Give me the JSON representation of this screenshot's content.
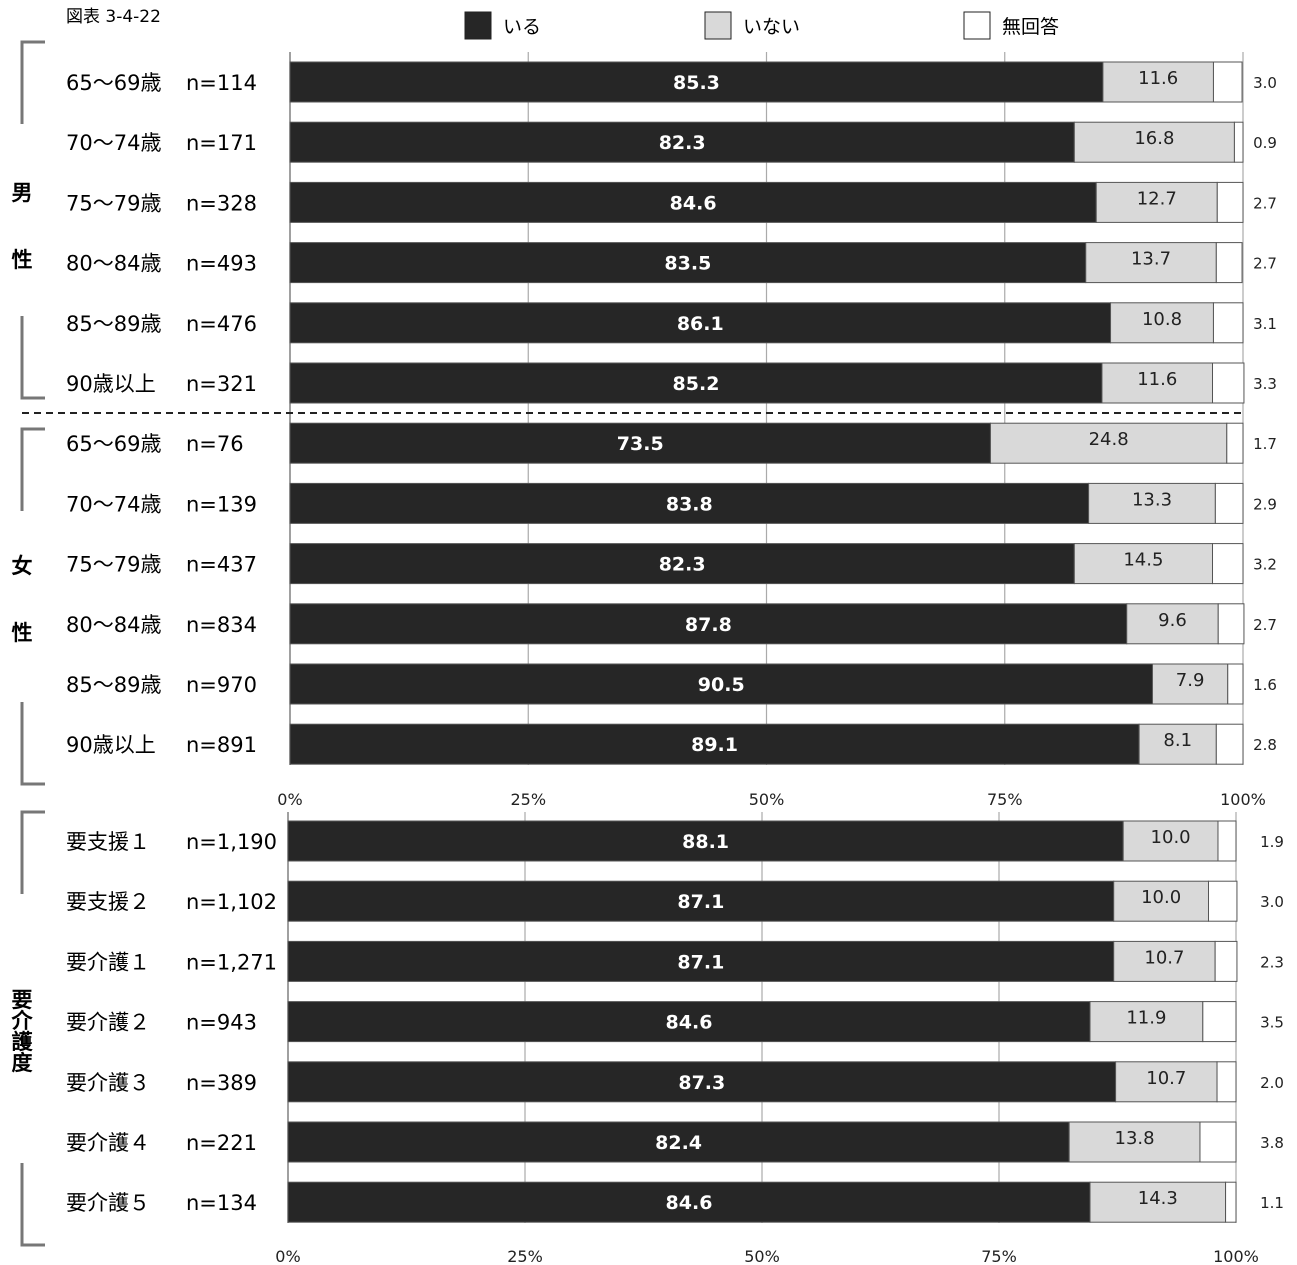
{
  "figure_label": "図表 3-4-22",
  "chart_data": {
    "type": "bar",
    "orientation": "horizontal",
    "stacked": true,
    "percent_axis": true,
    "xlim": [
      0,
      100
    ],
    "tick_labels": [
      "0%",
      "25%",
      "50%",
      "75%",
      "100%"
    ],
    "grid": true,
    "legend_position": "top",
    "series": [
      {
        "name": "いる",
        "color": "#262626"
      },
      {
        "name": "いない",
        "color": "#d9d9d9"
      },
      {
        "name": "無回答",
        "color": "#ffffff"
      }
    ],
    "panels": [
      {
        "groups": [
          {
            "label": "男性",
            "rows": [
              {
                "category": "65～69歳",
                "n": "n=114",
                "values": [
                  85.3,
                  11.6,
                  3.0
                ],
                "labels": [
                  "85.3",
                  "11.6",
                  "3.0"
                ]
              },
              {
                "category": "70～74歳",
                "n": "n=171",
                "values": [
                  82.3,
                  16.8,
                  0.9
                ],
                "labels": [
                  "82.3",
                  "16.8",
                  "0.9"
                ]
              },
              {
                "category": "75～79歳",
                "n": "n=328",
                "values": [
                  84.6,
                  12.7,
                  2.7
                ],
                "labels": [
                  "84.6",
                  "12.7",
                  "2.7"
                ]
              },
              {
                "category": "80～84歳",
                "n": "n=493",
                "values": [
                  83.5,
                  13.7,
                  2.7
                ],
                "labels": [
                  "83.5",
                  "13.7",
                  "2.7"
                ]
              },
              {
                "category": "85～89歳",
                "n": "n=476",
                "values": [
                  86.1,
                  10.8,
                  3.1
                ],
                "labels": [
                  "86.1",
                  "10.8",
                  "3.1"
                ]
              },
              {
                "category": "90歳以上",
                "n": "n=321",
                "values": [
                  85.2,
                  11.6,
                  3.3
                ],
                "labels": [
                  "85.2",
                  "11.6",
                  "3.3"
                ]
              }
            ]
          },
          {
            "label": "女性",
            "rows": [
              {
                "category": "65～69歳",
                "n": "n=76",
                "values": [
                  73.5,
                  24.8,
                  1.7
                ],
                "labels": [
                  "73.5",
                  "24.8",
                  "1.7"
                ]
              },
              {
                "category": "70～74歳",
                "n": "n=139",
                "values": [
                  83.8,
                  13.3,
                  2.9
                ],
                "labels": [
                  "83.8",
                  "13.3",
                  "2.9"
                ]
              },
              {
                "category": "75～79歳",
                "n": "n=437",
                "values": [
                  82.3,
                  14.5,
                  3.2
                ],
                "labels": [
                  "82.3",
                  "14.5",
                  "3.2"
                ]
              },
              {
                "category": "80～84歳",
                "n": "n=834",
                "values": [
                  87.8,
                  9.6,
                  2.7
                ],
                "labels": [
                  "87.8",
                  "9.6",
                  "2.7"
                ]
              },
              {
                "category": "85～89歳",
                "n": "n=970",
                "values": [
                  90.5,
                  7.9,
                  1.6
                ],
                "labels": [
                  "90.5",
                  "7.9",
                  "1.6"
                ]
              },
              {
                "category": "90歳以上",
                "n": "n=891",
                "values": [
                  89.1,
                  8.1,
                  2.8
                ],
                "labels": [
                  "89.1",
                  "8.1",
                  "2.8"
                ]
              }
            ]
          }
        ]
      },
      {
        "groups": [
          {
            "label": "要介護度",
            "rows": [
              {
                "category": "要支援１",
                "n": "n=1,190",
                "values": [
                  88.1,
                  10.0,
                  1.9
                ],
                "labels": [
                  "88.1",
                  "10.0",
                  "1.9"
                ]
              },
              {
                "category": "要支援２",
                "n": "n=1,102",
                "values": [
                  87.1,
                  10.0,
                  3.0
                ],
                "labels": [
                  "87.1",
                  "10.0",
                  "3.0"
                ]
              },
              {
                "category": "要介護１",
                "n": "n=1,271",
                "values": [
                  87.1,
                  10.7,
                  2.3
                ],
                "labels": [
                  "87.1",
                  "10.7",
                  "2.3"
                ]
              },
              {
                "category": "要介護２",
                "n": "n=943",
                "values": [
                  84.6,
                  11.9,
                  3.5
                ],
                "labels": [
                  "84.6",
                  "11.9",
                  "3.5"
                ]
              },
              {
                "category": "要介護３",
                "n": "n=389",
                "values": [
                  87.3,
                  10.7,
                  2.0
                ],
                "labels": [
                  "87.3",
                  "10.7",
                  "2.0"
                ]
              },
              {
                "category": "要介護４",
                "n": "n=221",
                "values": [
                  82.4,
                  13.8,
                  3.8
                ],
                "labels": [
                  "82.4",
                  "13.8",
                  "3.8"
                ]
              },
              {
                "category": "要介護５",
                "n": "n=134",
                "values": [
                  84.6,
                  14.3,
                  1.1
                ],
                "labels": [
                  "84.6",
                  "14.3",
                  "1.1"
                ]
              }
            ]
          }
        ]
      }
    ]
  }
}
